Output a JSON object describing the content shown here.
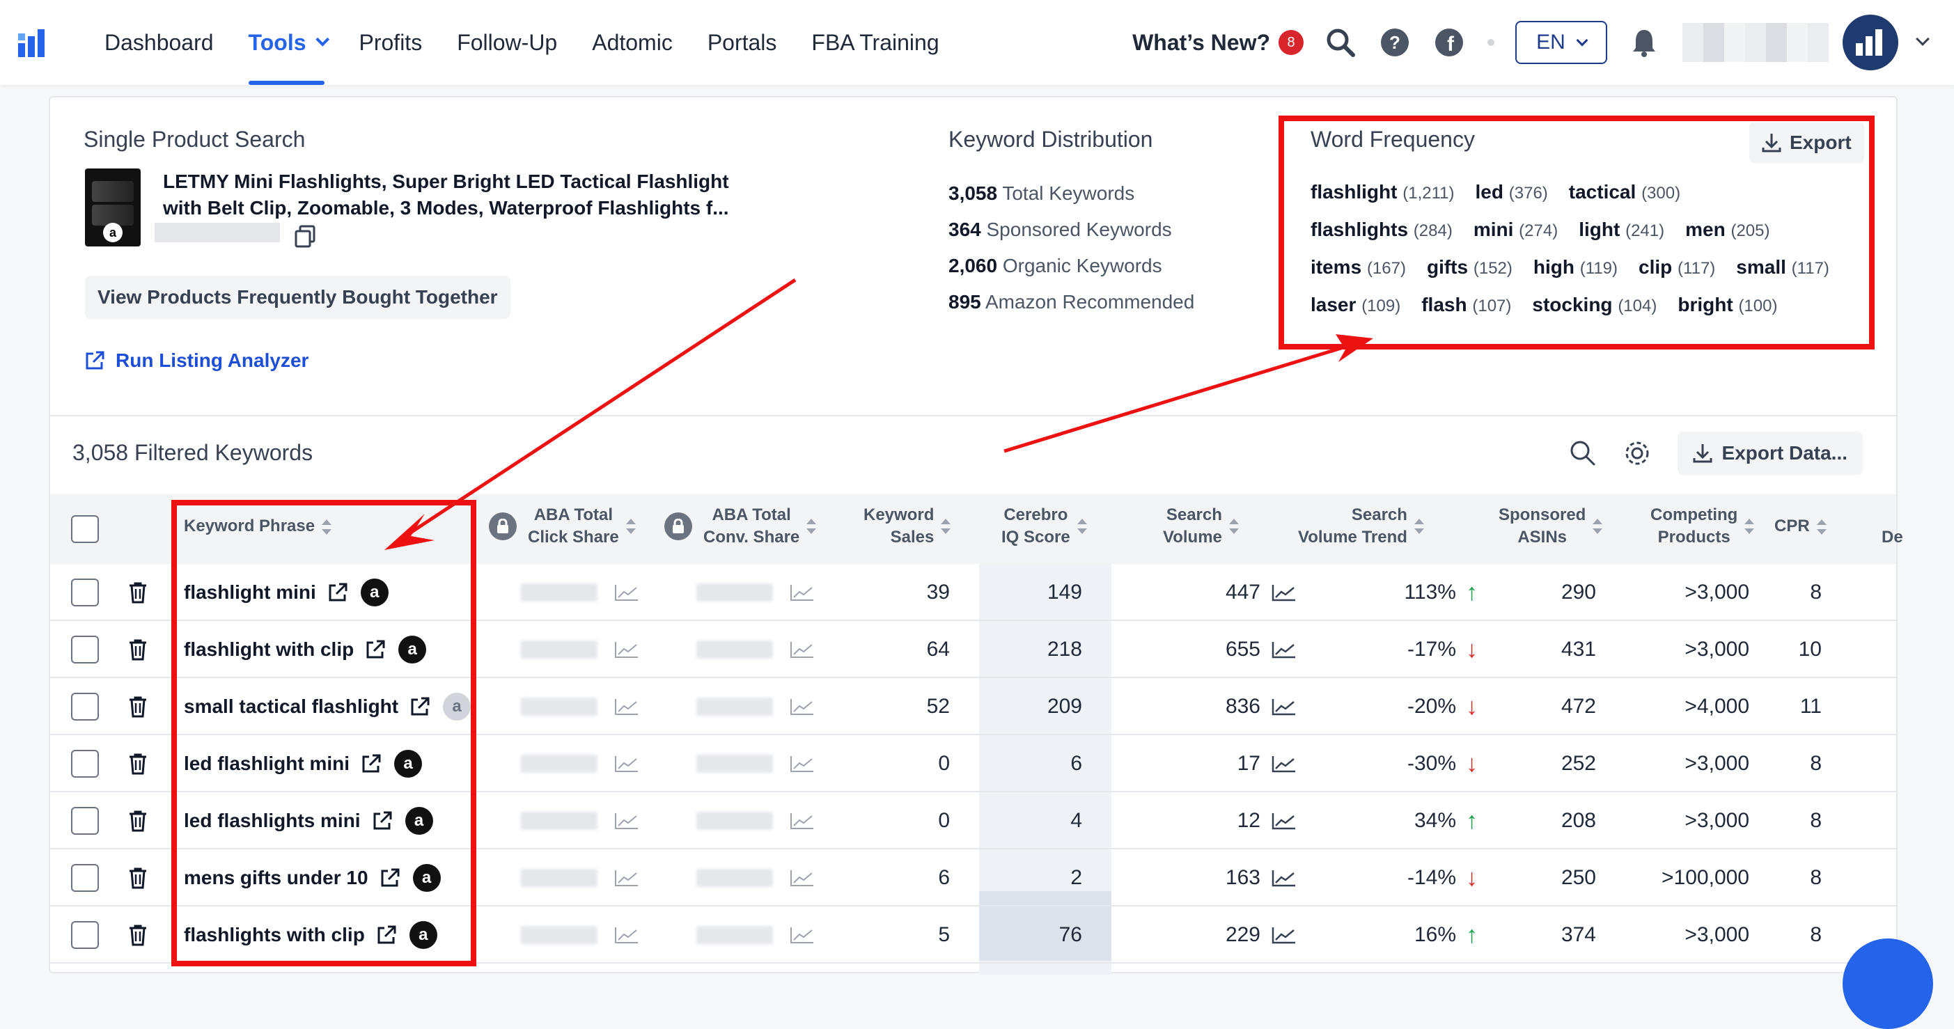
{
  "nav": {
    "items": [
      {
        "label": "Dashboard",
        "active": false
      },
      {
        "label": "Tools",
        "active": true
      },
      {
        "label": "Profits",
        "active": false
      },
      {
        "label": "Follow-Up",
        "active": false
      },
      {
        "label": "Adtomic",
        "active": false
      },
      {
        "label": "Portals",
        "active": false
      },
      {
        "label": "FBA Training",
        "active": false
      }
    ],
    "whats_new": "What’s New?",
    "whats_new_count": "8",
    "language": "EN"
  },
  "product": {
    "section_title": "Single Product Search",
    "title": "LETMY Mini Flashlights, Super Bright LED Tactical Flashlight with Belt Clip, Zoomable, 3 Modes, Waterproof Flashlights f...",
    "frequently_bought_button": "View Products Frequently Bought Together",
    "run_listing_analyzer": "Run Listing Analyzer"
  },
  "keyword_distribution": {
    "title": "Keyword Distribution",
    "stats": [
      {
        "value": "3,058",
        "label": "Total Keywords"
      },
      {
        "value": "364",
        "label": "Sponsored Keywords"
      },
      {
        "value": "2,060",
        "label": "Organic Keywords"
      },
      {
        "value": "895",
        "label": "Amazon Recommended"
      }
    ]
  },
  "word_frequency": {
    "title": "Word Frequency",
    "export_label": "Export",
    "words": [
      {
        "word": "flashlight",
        "count": "(1,211)"
      },
      {
        "word": "led",
        "count": "(376)"
      },
      {
        "word": "tactical",
        "count": "(300)"
      },
      {
        "word": "flashlights",
        "count": "(284)"
      },
      {
        "word": "mini",
        "count": "(274)"
      },
      {
        "word": "light",
        "count": "(241)"
      },
      {
        "word": "men",
        "count": "(205)"
      },
      {
        "word": "items",
        "count": "(167)"
      },
      {
        "word": "gifts",
        "count": "(152)"
      },
      {
        "word": "high",
        "count": "(119)"
      },
      {
        "word": "clip",
        "count": "(117)"
      },
      {
        "word": "small",
        "count": "(117)"
      },
      {
        "word": "laser",
        "count": "(109)"
      },
      {
        "word": "flash",
        "count": "(107)"
      },
      {
        "word": "stocking",
        "count": "(104)"
      },
      {
        "word": "bright",
        "count": "(100)"
      }
    ]
  },
  "table": {
    "filtered_label": "3,058 Filtered Keywords",
    "export_data_label": "Export Data...",
    "headers": {
      "keyword_phrase": "Keyword Phrase",
      "aba_click_1": "ABA Total",
      "aba_click_2": "Click Share",
      "aba_conv_1": "ABA Total",
      "aba_conv_2": "Conv. Share",
      "keyword_sales_1": "Keyword",
      "keyword_sales_2": "Sales",
      "cerebro_1": "Cerebro",
      "cerebro_2": "IQ Score",
      "search_volume_1": "Search",
      "search_volume_2": "Volume",
      "trend_1": "Search",
      "trend_2": "Volume Trend",
      "sponsored_1": "Sponsored",
      "sponsored_2": "ASINs",
      "competing_1": "Competing",
      "competing_2": "Products",
      "cpr": "CPR",
      "cutoff": "De"
    },
    "rows": [
      {
        "keyword": "flashlight mini",
        "sales": "39",
        "cerebro": "149",
        "volume": "447",
        "trend": "113%",
        "trend_dir": "up",
        "sponsored": "290",
        "competing": ">3,000",
        "cpr": "8",
        "amz": "dark"
      },
      {
        "keyword": "flashlight with clip",
        "sales": "64",
        "cerebro": "218",
        "volume": "655",
        "trend": "-17%",
        "trend_dir": "down",
        "sponsored": "431",
        "competing": ">3,000",
        "cpr": "10",
        "amz": "dark"
      },
      {
        "keyword": "small tactical flashlight",
        "sales": "52",
        "cerebro": "209",
        "volume": "836",
        "trend": "-20%",
        "trend_dir": "down",
        "sponsored": "472",
        "competing": ">4,000",
        "cpr": "11",
        "amz": "muted"
      },
      {
        "keyword": "led flashlight mini",
        "sales": "0",
        "cerebro": "6",
        "volume": "17",
        "trend": "-30%",
        "trend_dir": "down",
        "sponsored": "252",
        "competing": ">3,000",
        "cpr": "8",
        "amz": "dark"
      },
      {
        "keyword": "led flashlights mini",
        "sales": "0",
        "cerebro": "4",
        "volume": "12",
        "trend": "34%",
        "trend_dir": "up",
        "sponsored": "208",
        "competing": ">3,000",
        "cpr": "8",
        "amz": "dark"
      },
      {
        "keyword": "mens gifts under 10",
        "sales": "6",
        "cerebro": "2",
        "volume": "163",
        "trend": "-14%",
        "trend_dir": "down",
        "sponsored": "250",
        "competing": ">100,000",
        "cpr": "8",
        "amz": "dark"
      },
      {
        "keyword": "flashlights with clip",
        "sales": "5",
        "cerebro": "76",
        "volume": "229",
        "trend": "16%",
        "trend_dir": "up",
        "sponsored": "374",
        "competing": ">3,000",
        "cpr": "8",
        "amz": "dark"
      }
    ],
    "trend_up_glyph": "↑",
    "trend_down_glyph": "↓",
    "amazon_glyph": "a"
  },
  "colors": {
    "accent": "#2563eb",
    "annotation_red": "#ee1111",
    "trend_up": "#16a34a",
    "trend_down": "#dc2626"
  }
}
